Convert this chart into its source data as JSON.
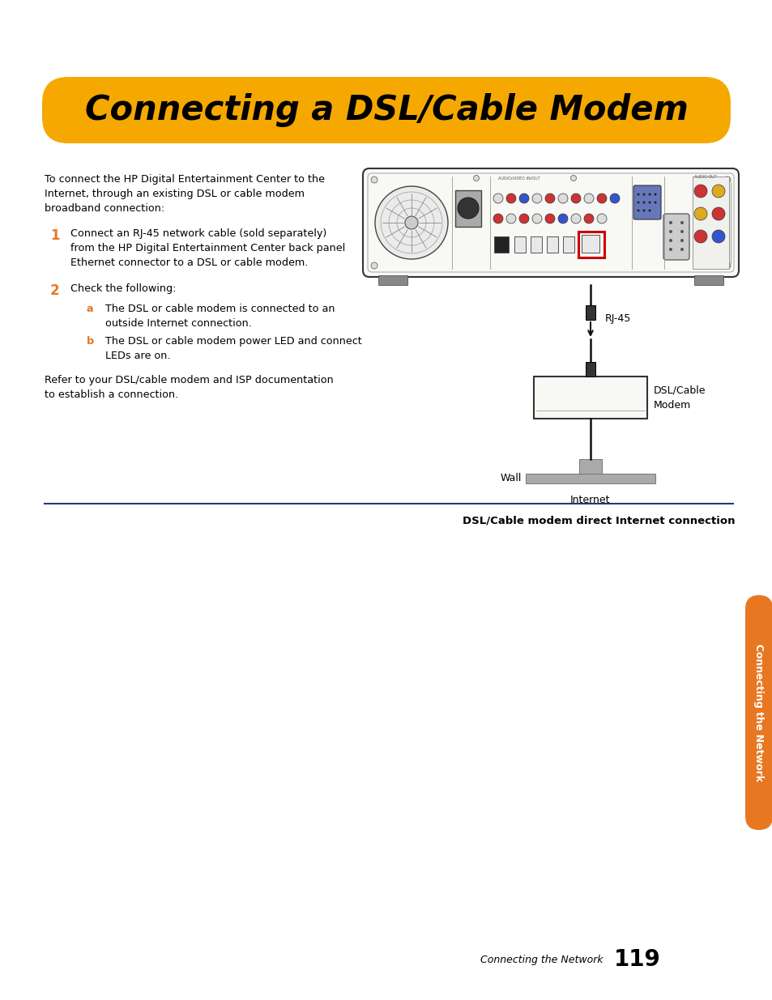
{
  "title": "Connecting a DSL/Cable Modem",
  "title_bg_color": "#F5A800",
  "title_text_color": "#000000",
  "body_bg_color": "#FFFFFF",
  "sidebar_color": "#E87722",
  "sidebar_text": "Connecting the Network",
  "page_number": "119",
  "footer_label": "Connecting the Network",
  "divider_color": "#1F3A7A",
  "caption_text": "DSL/Cable modem direct Internet connection",
  "intro_text": "To connect the HP Digital Entertainment Center to the\nInternet, through an existing DSL or cable modem\nbroadband connection:",
  "step1_num": "1",
  "step1_color": "#E87722",
  "step1_text": "Connect an RJ-45 network cable (sold separately)\nfrom the HP Digital Entertainment Center back panel\nEthernet connector to a DSL or cable modem.",
  "step2_num": "2",
  "step2_color": "#E87722",
  "step2_text": "Check the following:",
  "step2a_label": "a",
  "step2a_color": "#E87722",
  "step2a_text": "The DSL or cable modem is connected to an\noutside Internet connection.",
  "step2b_label": "b",
  "step2b_color": "#E87722",
  "step2b_text": "The DSL or cable modem power LED and connect\nLEDs are on.",
  "refer_text": "Refer to your DSL/cable modem and ISP documentation\nto establish a connection.",
  "rj45_label": "RJ-45",
  "modem_label": "DSL/Cable\nModem",
  "wall_label": "Wall",
  "internet_label": "Internet"
}
